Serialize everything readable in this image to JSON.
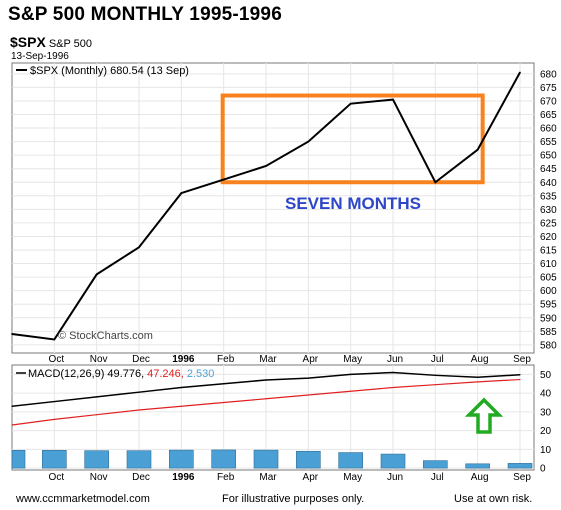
{
  "header": {
    "title": "S&P 500 MONTHLY 1995-1996",
    "symbol": "$SPX",
    "symbol_name": "S&P 500",
    "date": "13-Sep-1996"
  },
  "price_panel": {
    "legend": "$SPX (Monthly) 680.54 (13 Sep)",
    "watermark": "© StockCharts.com",
    "annotation": "SEVEN MONTHS",
    "annotation_color": "#2e47c9",
    "box_color": "#f7821e"
  },
  "macd_panel": {
    "legend_prefix": "MACD(12,26,9)",
    "macd_value": "49.776,",
    "signal_value": "47.246,",
    "hist_value": "2.530",
    "macd_color": "#000000",
    "signal_color": "#e02020",
    "hist_color": "#4a9fd4",
    "arrow_color": "#22aa22",
    "arrow_icon": "green-up-arrow"
  },
  "footer": {
    "left": "www.ccmmarketmodel.com",
    "middle": "For illustrative purposes only.",
    "right": "Use at own risk."
  },
  "chart_data": [
    {
      "type": "line",
      "title": "S&P 500 MONTHLY 1995-1996",
      "categories": [
        "Sep",
        "Oct",
        "Nov",
        "Dec",
        "1996",
        "Feb",
        "Mar",
        "Apr",
        "May",
        "Jun",
        "Jul",
        "Aug",
        "Sep"
      ],
      "x_tick_labels": [
        "Oct",
        "Nov",
        "Dec",
        "1996",
        "Feb",
        "Mar",
        "Apr",
        "May",
        "Jun",
        "Jul",
        "Aug",
        "Sep"
      ],
      "series": [
        {
          "name": "$SPX (Monthly)",
          "values": [
            584,
            582,
            606,
            616,
            636,
            641,
            646,
            655,
            669,
            670.5,
            640,
            652,
            680.54
          ]
        }
      ],
      "ylim": [
        577,
        684
      ],
      "y_ticks": [
        580,
        585,
        590,
        595,
        600,
        605,
        610,
        615,
        620,
        625,
        630,
        635,
        640,
        645,
        650,
        655,
        660,
        665,
        670,
        675,
        680
      ],
      "highlight_box": {
        "from": "Feb",
        "to": "Aug",
        "ymin": 640,
        "ymax": 672
      }
    },
    {
      "type": "line",
      "categories": [
        "Sep",
        "Oct",
        "Nov",
        "Dec",
        "1996",
        "Feb",
        "Mar",
        "Apr",
        "May",
        "Jun",
        "Jul",
        "Aug",
        "Sep"
      ],
      "series": [
        {
          "name": "MACD(12,26,9)",
          "values": [
            33,
            35.5,
            38,
            40.5,
            43,
            45,
            47,
            48,
            50,
            51,
            49.5,
            48.5,
            49.776
          ]
        },
        {
          "name": "Signal",
          "values": [
            23,
            26,
            28.5,
            31,
            33,
            35,
            37,
            39,
            41,
            43,
            44.5,
            46,
            47.246
          ]
        },
        {
          "name": "Histogram",
          "values": [
            9.5,
            9.5,
            9.3,
            9.3,
            9.6,
            9.7,
            9.6,
            9.0,
            8.3,
            7.5,
            4.0,
            2.3,
            2.53
          ]
        }
      ],
      "ylim": [
        -1,
        55
      ],
      "y_ticks": [
        0,
        10,
        20,
        30,
        40,
        50
      ]
    }
  ]
}
